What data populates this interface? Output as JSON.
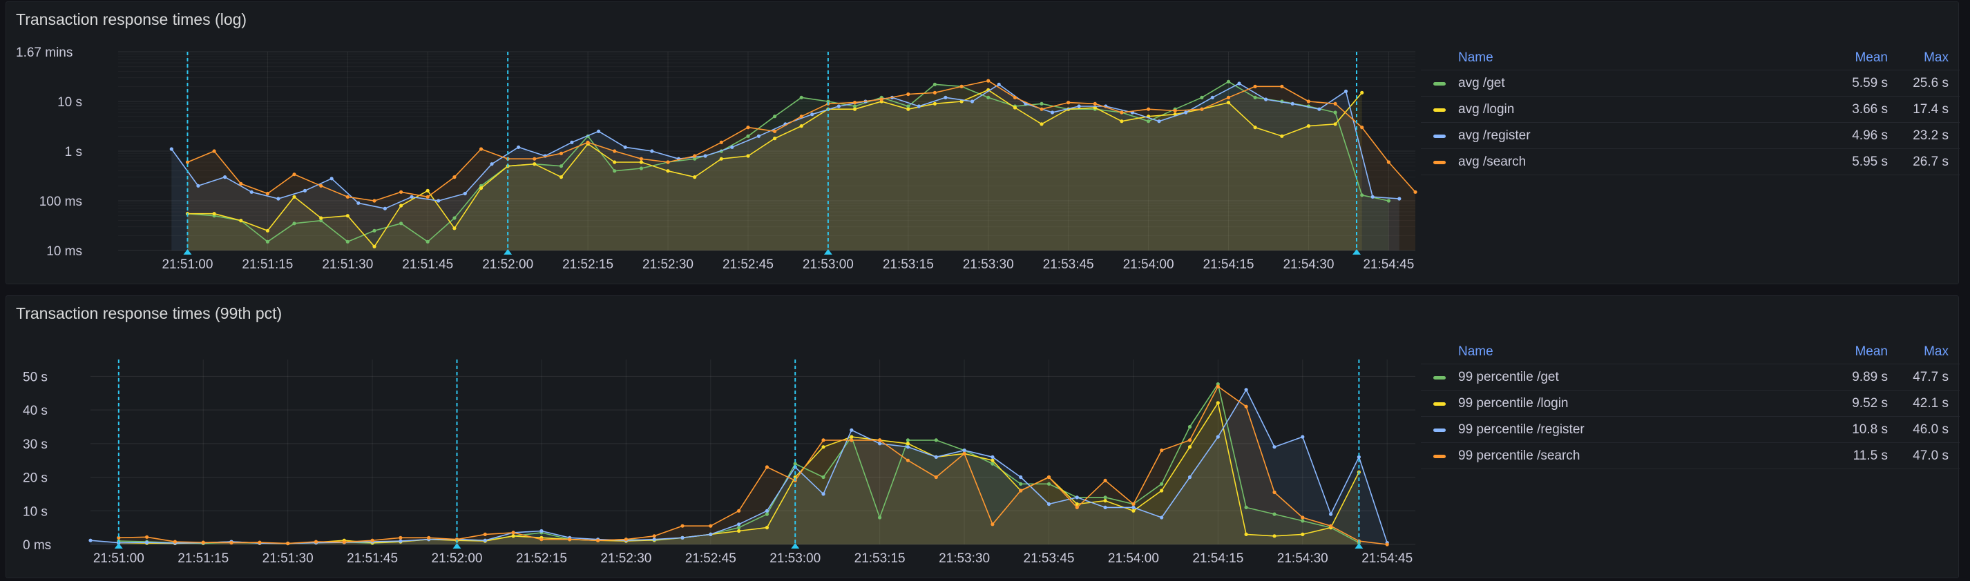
{
  "panels": [
    {
      "title": "Transaction response times (log)",
      "legend_headers": {
        "name": "Name",
        "mean": "Mean",
        "max": "Max"
      },
      "legend": [
        {
          "name": "avg /get",
          "mean": "5.59 s",
          "max": "25.6 s",
          "color": "#73bf69"
        },
        {
          "name": "avg /login",
          "mean": "3.66 s",
          "max": "17.4 s",
          "color": "#fade2a"
        },
        {
          "name": "avg /register",
          "mean": "4.96 s",
          "max": "23.2 s",
          "color": "#8ab8ff"
        },
        {
          "name": "avg /search",
          "mean": "5.95 s",
          "max": "26.7 s",
          "color": "#ff9830"
        }
      ]
    },
    {
      "title": "Transaction response times (99th pct)",
      "legend_headers": {
        "name": "Name",
        "mean": "Mean",
        "max": "Max"
      },
      "legend": [
        {
          "name": "99 percentile /get",
          "mean": "9.89 s",
          "max": "47.7 s",
          "color": "#73bf69"
        },
        {
          "name": "99 percentile /login",
          "mean": "9.52 s",
          "max": "42.1 s",
          "color": "#fade2a"
        },
        {
          "name": "99 percentile /register",
          "mean": "10.8 s",
          "max": "46.0 s",
          "color": "#8ab8ff"
        },
        {
          "name": "99 percentile /search",
          "mean": "11.5 s",
          "max": "47.0 s",
          "color": "#ff9830"
        }
      ]
    }
  ],
  "chart_data": [
    {
      "type": "area",
      "title": "Transaction response times (log)",
      "yscale": "log",
      "ylim": [
        10,
        100000
      ],
      "y_unit": "ms",
      "yticks": [
        {
          "v": 10,
          "label": "10 ms"
        },
        {
          "v": 100,
          "label": "100 ms"
        },
        {
          "v": 1000,
          "label": "1 s"
        },
        {
          "v": 10000,
          "label": "10 s"
        },
        {
          "v": 100000,
          "label": "1.67 mins"
        }
      ],
      "x_start": "21:51:00",
      "x_step_seconds": 5,
      "xlim": [
        "21:50:47",
        "21:54:50"
      ],
      "xticks": [
        "21:51:00",
        "21:51:15",
        "21:51:30",
        "21:51:45",
        "21:52:00",
        "21:52:15",
        "21:52:30",
        "21:52:45",
        "21:53:00",
        "21:53:15",
        "21:53:30",
        "21:53:45",
        "21:54:00",
        "21:54:15",
        "21:54:30",
        "21:54:45"
      ],
      "annotations": [
        "21:51:00",
        "21:52:00",
        "21:53:00",
        "21:54:39"
      ],
      "series": [
        {
          "name": "avg /get",
          "color": "#73bf69",
          "start": "21:51:00",
          "values": [
            55,
            50,
            40,
            15,
            35,
            40,
            15,
            25,
            35,
            15,
            45,
            200,
            500,
            550,
            500,
            2000,
            400,
            450,
            600,
            700,
            1000,
            2000,
            5000,
            12000,
            10000,
            8000,
            12000,
            8000,
            22000,
            20000,
            12000,
            8000,
            9000,
            7000,
            7000,
            6000,
            4000,
            7000,
            12000,
            25000,
            12000,
            10000,
            8000,
            6000,
            130,
            100
          ]
        },
        {
          "name": "avg /login",
          "color": "#fade2a",
          "start": "21:51:00",
          "values": [
            55,
            55,
            40,
            25,
            120,
            45,
            50,
            12,
            80,
            160,
            28,
            180,
            500,
            550,
            300,
            1400,
            600,
            600,
            400,
            300,
            700,
            800,
            1800,
            3200,
            7000,
            7000,
            10000,
            7000,
            9000,
            10000,
            17000,
            7500,
            3500,
            7000,
            7500,
            4000,
            5000,
            5500,
            7000,
            9500,
            3000,
            2000,
            3200,
            3500,
            15000
          ]
        },
        {
          "name": "avg /register",
          "color": "#8ab8ff",
          "start": "21:50:57",
          "values": [
            1100,
            200,
            300,
            150,
            110,
            160,
            280,
            90,
            70,
            120,
            100,
            140,
            550,
            1200,
            800,
            1500,
            2500,
            1200,
            1000,
            700,
            800,
            1200,
            2000,
            3500,
            5500,
            8000,
            10000,
            12000,
            8000,
            12000,
            10000,
            22000,
            9000,
            6000,
            8000,
            8000,
            6000,
            4000,
            6000,
            12000,
            23000,
            11000,
            9000,
            7000,
            16000,
            120,
            110
          ]
        },
        {
          "name": "avg /search",
          "color": "#ff9830",
          "start": "21:51:00",
          "values": [
            600,
            1000,
            220,
            140,
            340,
            200,
            120,
            100,
            150,
            120,
            300,
            1100,
            700,
            700,
            900,
            1500,
            1000,
            700,
            600,
            800,
            1500,
            3000,
            2500,
            5000,
            9000,
            9500,
            11000,
            14000,
            15000,
            20000,
            26000,
            12000,
            7000,
            9500,
            9000,
            6000,
            7000,
            6500,
            7000,
            12000,
            20000,
            20000,
            10000,
            9000,
            3000,
            600,
            150
          ]
        }
      ]
    },
    {
      "type": "area",
      "title": "Transaction response times (99th pct)",
      "ylim": [
        0,
        55
      ],
      "y_unit": "s",
      "yticks": [
        {
          "v": 0,
          "label": "0 ms"
        },
        {
          "v": 10,
          "label": "10 s"
        },
        {
          "v": 20,
          "label": "20 s"
        },
        {
          "v": 30,
          "label": "30 s"
        },
        {
          "v": 40,
          "label": "40 s"
        },
        {
          "v": 50,
          "label": "50 s"
        }
      ],
      "x_start": "21:51:00",
      "x_step_seconds": 5,
      "xlim": [
        "21:50:55",
        "21:54:50"
      ],
      "xticks": [
        "21:51:00",
        "21:51:15",
        "21:51:30",
        "21:51:45",
        "21:52:00",
        "21:52:15",
        "21:52:30",
        "21:52:45",
        "21:53:00",
        "21:53:15",
        "21:53:30",
        "21:53:45",
        "21:54:00",
        "21:54:15",
        "21:54:30",
        "21:54:45"
      ],
      "annotations": [
        "21:51:00",
        "21:52:00",
        "21:53:00",
        "21:54:40"
      ],
      "series": [
        {
          "name": "99 percentile /get",
          "color": "#73bf69",
          "start": "21:51:00",
          "values": [
            1,
            0.8,
            0.5,
            0.3,
            0.6,
            0.4,
            0.3,
            0.5,
            0.7,
            0.4,
            0.8,
            1.5,
            1.5,
            1.2,
            2.5,
            3.5,
            1.5,
            1.2,
            1.5,
            1.2,
            2,
            3,
            5,
            9,
            24,
            20,
            32,
            8,
            31,
            31,
            28,
            24,
            18,
            18,
            14,
            14,
            12,
            18,
            35,
            47.7,
            11,
            9,
            7,
            5,
            0.5
          ]
        },
        {
          "name": "99 percentile /login",
          "color": "#fade2a",
          "start": "21:51:00",
          "values": [
            0.5,
            0.4,
            0.3,
            0.5,
            0.8,
            0.4,
            0.3,
            0.6,
            1.2,
            0.5,
            0.8,
            1.5,
            1.2,
            1,
            2.5,
            2,
            1.5,
            1.2,
            1,
            1.3,
            2,
            3,
            4,
            5,
            20,
            29,
            32,
            31,
            30,
            26,
            27,
            25,
            16,
            20,
            12,
            13,
            10,
            16,
            29,
            42.1,
            3,
            2.5,
            3,
            5,
            21.5
          ]
        },
        {
          "name": "99 percentile /register",
          "color": "#8ab8ff",
          "start": "21:50:55",
          "values": [
            1.2,
            0.5,
            0.6,
            0.4,
            0.5,
            0.8,
            0.4,
            0.3,
            0.5,
            0.6,
            0.8,
            1,
            1.5,
            1.5,
            1.2,
            3.5,
            4,
            2,
            1.5,
            1.2,
            1.5,
            2,
            3,
            6,
            10,
            23,
            15,
            34,
            30,
            29,
            26,
            28,
            26,
            20,
            12,
            14,
            11,
            11,
            8,
            20,
            32,
            46,
            29,
            32,
            9,
            26,
            0.5
          ]
        },
        {
          "name": "99 percentile /search",
          "color": "#ff9830",
          "start": "21:51:00",
          "values": [
            2,
            2.2,
            0.8,
            0.6,
            0.5,
            0.6,
            0.3,
            0.8,
            0.7,
            1.2,
            2,
            2,
            1.5,
            3,
            3.5,
            1.5,
            1.5,
            1.2,
            1.5,
            2.5,
            5.5,
            5.5,
            10,
            23,
            19,
            31,
            31,
            31,
            25,
            20,
            27,
            6,
            16,
            20,
            11,
            19,
            12,
            28,
            31,
            47,
            41,
            15.5,
            8,
            5.5,
            1,
            0
          ]
        }
      ]
    }
  ]
}
